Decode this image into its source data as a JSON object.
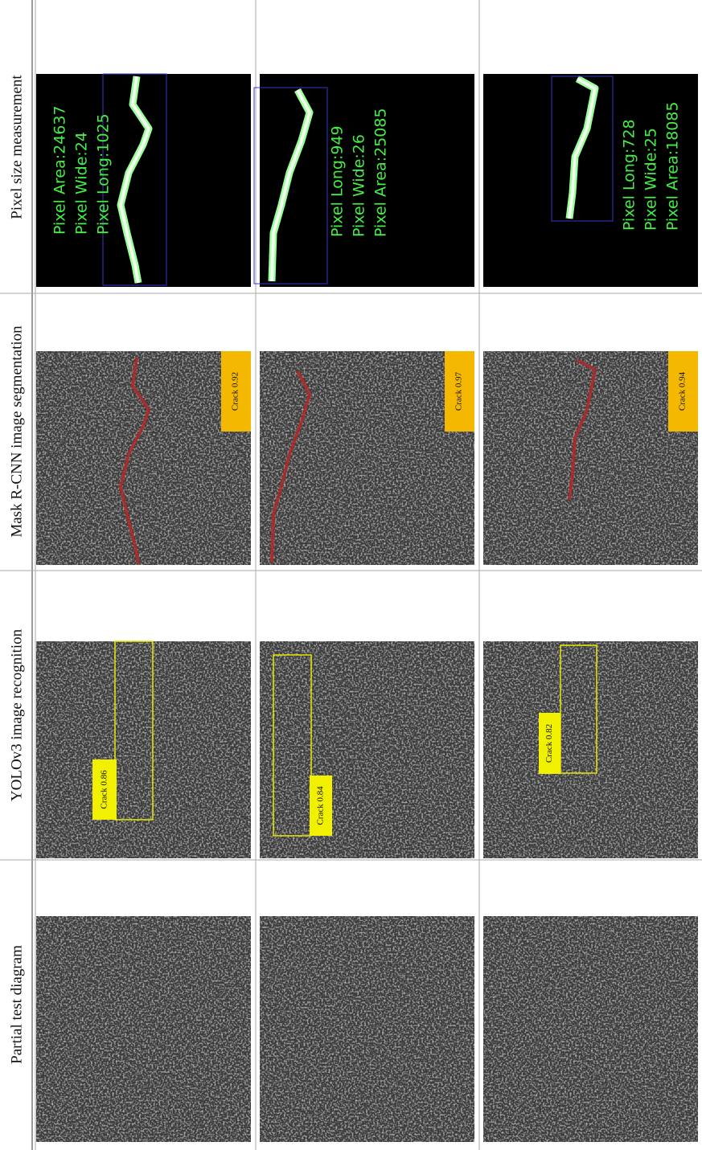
{
  "table": {
    "headers": [
      "Partial test diagram",
      "YOLOv3 image recognition",
      "Mask R-CNN image segmentation",
      "Pixel size measurement"
    ],
    "rows": [
      {
        "yolo_label": "Crack 0.86",
        "mask_label": "Crack 0.92",
        "measurement": [
          "Pixel Area:24637",
          "Pixel Wide:24",
          "Pixel Long:1025"
        ]
      },
      {
        "yolo_label": "Crack 0.84",
        "mask_label": "Crack 0.97",
        "measurement": [
          "Pixel Long:949",
          "Pixel Wide:26",
          "Pixel Area:25085"
        ]
      },
      {
        "yolo_label": "Crack 0.82",
        "mask_label": "Crack 0.94",
        "measurement": [
          "Pixel Long:728",
          "Pixel Wide:25",
          "Pixel Area:18085"
        ]
      }
    ]
  }
}
